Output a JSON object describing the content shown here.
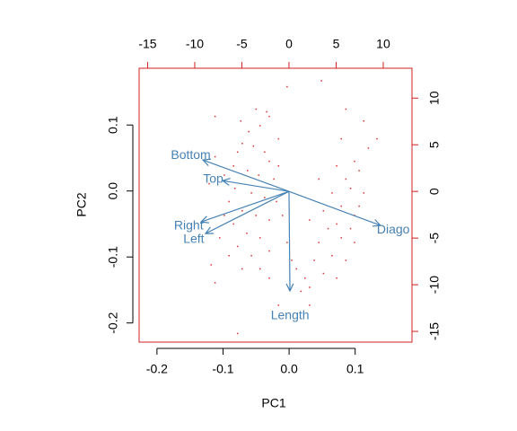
{
  "chart_data": {
    "type": "biplot",
    "xlabel": "PC1",
    "ylabel": "PC2",
    "xlim": [
      -0.227,
      0.186
    ],
    "ylim": [
      -0.229,
      0.186
    ],
    "xticks": [
      -0.2,
      -0.1,
      {
        "value": 0,
        "label": "0.0"
      },
      0.1
    ],
    "yticks": [
      -0.2,
      -0.1,
      {
        "value": 0,
        "label": "0.0"
      },
      0.1
    ],
    "x2lim": [
      -15.9,
      13.05
    ],
    "y2lim": [
      -16.15,
      13.2
    ],
    "x2ticks": [
      -15,
      -10,
      -5,
      0,
      5,
      10
    ],
    "y2ticks": [
      -15,
      -10,
      -5,
      0,
      5,
      10
    ],
    "box_color": "#d02020",
    "points": {
      "color": "#e03030",
      "x": [
        0.049,
        -0.003,
        -0.112,
        -0.073,
        -0.05,
        -0.034,
        -0.061,
        -0.044,
        -0.03,
        -0.016,
        -0.071,
        -0.054,
        -0.037,
        -0.03,
        -0.084,
        -0.063,
        -0.046,
        -0.023,
        -0.098,
        -0.082,
        -0.057,
        -0.037,
        -0.019,
        -0.091,
        -0.071,
        -0.05,
        -0.03,
        -0.084,
        -0.064,
        -0.044,
        -0.105,
        -0.078,
        -0.057,
        -0.03,
        -0.118,
        -0.091,
        -0.071,
        -0.044,
        -0.112,
        -0.03,
        -0.003,
        0.004,
        0.011,
        0.024,
        0.018,
        0.031,
        -0.016,
        -0.078,
        0.086,
        0.113,
        0.12,
        0.079,
        0.099,
        0.106,
        0.072,
        0.086,
        0.093,
        0.113,
        0.065,
        0.079,
        0.099,
        0.052,
        0.059,
        0.079,
        0.099,
        0.045,
        0.065,
        0.086,
        0.038,
        0.052,
        0.072,
        0.031,
        0.133,
        0.106,
        0.031,
        0.045,
        -0.112,
        -0.078,
        -0.016,
        -0.01,
        0.072,
        0.093,
        -0.098,
        -0.121
      ],
      "y": [
        0.167,
        0.158,
        0.113,
        0.106,
        0.124,
        0.12,
        0.09,
        0.099,
        0.113,
        0.079,
        0.072,
        0.068,
        0.059,
        0.045,
        0.038,
        0.031,
        0.024,
        0.018,
        0.024,
        0.004,
        -0.003,
        -0.01,
        -0.016,
        -0.016,
        -0.03,
        -0.037,
        -0.044,
        -0.05,
        -0.064,
        -0.071,
        -0.071,
        -0.084,
        -0.098,
        -0.091,
        -0.112,
        -0.098,
        -0.118,
        -0.118,
        -0.139,
        -0.132,
        -0.078,
        -0.105,
        -0.118,
        -0.132,
        -0.152,
        -0.173,
        -0.173,
        -0.216,
        0.124,
        0.106,
        0.065,
        0.079,
        0.045,
        0.031,
        0.038,
        0.018,
        0.004,
        -0.003,
        -0.003,
        -0.023,
        -0.037,
        -0.03,
        -0.057,
        -0.071,
        -0.078,
        -0.078,
        -0.098,
        -0.105,
        -0.105,
        -0.125,
        -0.132,
        -0.146,
        0.079,
        -0.023,
        -0.044,
        0.018,
        0.052,
        0.059,
        0.038,
        -0.037,
        -0.05,
        -0.057,
        -0.037,
        0.011
      ]
    },
    "arrows": {
      "color": "#4682b4",
      "names": [
        "Length",
        "Left",
        "Right",
        "Bottom",
        "Top",
        "Diago"
      ],
      "x": [
        0.1,
        -8.86,
        -9.33,
        -9.14,
        -7.05,
        9.71
      ],
      "y": [
        -10.67,
        -4.52,
        -3.27,
        3.37,
        1.15,
        -3.65
      ]
    }
  }
}
